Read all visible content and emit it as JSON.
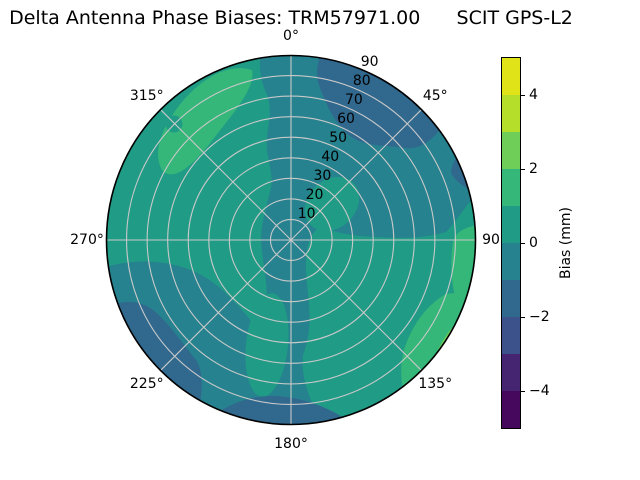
{
  "title": "Delta Antenna Phase Biases: TRM57971.00      SCIT GPS-L2",
  "grid_color": "#c9c9c9",
  "chart_data": {
    "type": "heatmap",
    "projection": "polar",
    "description": "Filled polar contour (sky plot) of delta antenna phase bias versus azimuth (angular axis, 0-360 deg, 0 at top, clockwise) and zenith angle (radial axis, 0 at center to 90 at edge) for antenna TRM57971.00, site/campaign SCIT, signal GPS-L2",
    "theta_ticks": {
      "angles_deg": [
        0,
        45,
        90,
        135,
        180,
        225,
        270,
        315
      ],
      "labels": [
        "0°",
        "45°",
        "90",
        "135°",
        "180°",
        "225°",
        "270°",
        "315°"
      ]
    },
    "radial_ticks": {
      "values": [
        10,
        20,
        30,
        40,
        50,
        60,
        70,
        80,
        90
      ],
      "labels": [
        "10",
        "20",
        "30",
        "40",
        "50",
        "60",
        "70",
        "80",
        "90"
      ],
      "range": [
        0,
        90
      ]
    },
    "colorbar": {
      "label": "Bias (mm)",
      "range": [
        -5,
        5
      ],
      "levels": [
        -5,
        -4,
        -3,
        -2,
        -1,
        0,
        1,
        2,
        3,
        4,
        5
      ],
      "colors": [
        "#46085c",
        "#452571",
        "#3b528b",
        "#31688e",
        "#26828e",
        "#209b86",
        "#35b779",
        "#6ece58",
        "#b5de2b",
        "#dfe318"
      ],
      "ticks": {
        "values": [
          4,
          2,
          0,
          -2,
          -4
        ],
        "labels": [
          "4",
          "2",
          "0",
          "−2",
          "−4"
        ]
      }
    },
    "regions": [
      {
        "band": "-2 to -1 mm",
        "color": "#31688e",
        "areas": [
          "upper-right arc, azimuth 10-55°, zenith 55-90",
          "small edge sliver azimuth 62-78°",
          "lower-left edge, azimuth 205-250°, zenith 70-90",
          "bottom edge, azimuth 160-205°, zenith 78-90"
        ]
      },
      {
        "band": "-1 to 0 mm",
        "color": "#26828e",
        "areas": [
          "most of upper-right quadrant",
          "S-shaped vertical band through center from azimuth 0° to 180°",
          "most of lower-left quadrant beyond zenith 30"
        ]
      },
      {
        "band": "0 to 1 mm",
        "color": "#209b86",
        "areas": [
          "background over left, upper-left and lower-right portions of the disk"
        ]
      },
      {
        "band": "1 to 2 mm",
        "color": "#35b779",
        "areas": [
          "elongated patch azimuth 315-345°, zenith 30-88",
          "east edge patch azimuth 90-110°",
          "southeast edge band azimuth 108-145°, zenith 65-90"
        ]
      },
      {
        "band": "2 to 3 mm",
        "color": "#6ece58",
        "areas": [
          "thin sliver at southeast edge, azimuth 115-138°, zenith 80-90"
        ]
      }
    ]
  }
}
